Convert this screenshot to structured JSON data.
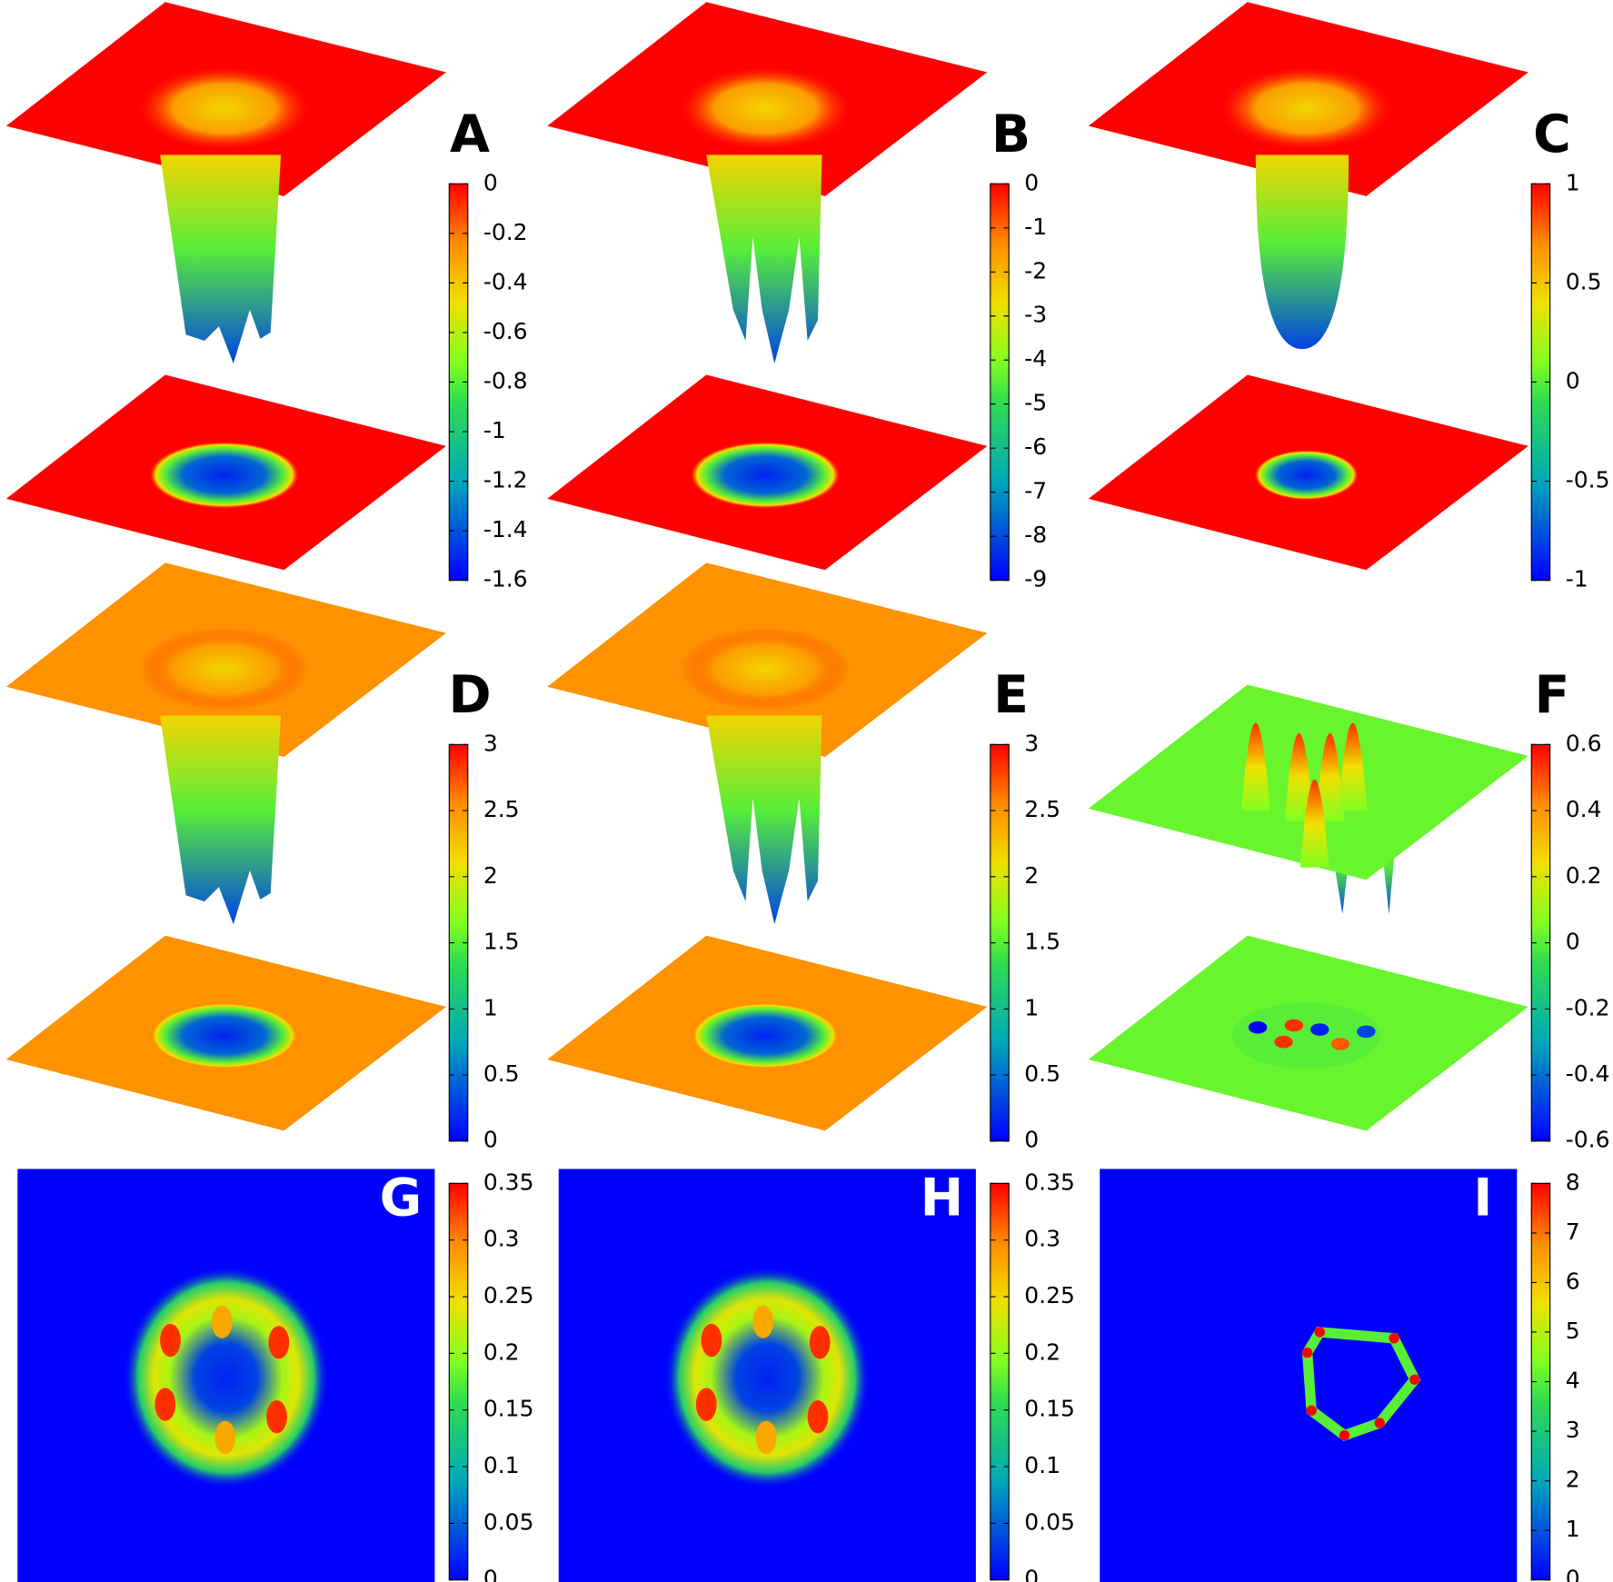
{
  "chart_data": [
    {
      "type": "surface",
      "label": "A",
      "clim": [
        -1.6,
        0
      ],
      "cticks": [
        -1.6,
        -1.4,
        -1.2,
        -1,
        -0.8,
        -0.6,
        -0.4,
        -0.2,
        0
      ]
    },
    {
      "type": "surface",
      "label": "B",
      "clim": [
        -9,
        0
      ],
      "cticks": [
        -9,
        -8,
        -7,
        -6,
        -5,
        -4,
        -3,
        -2,
        -1,
        0
      ]
    },
    {
      "type": "surface",
      "label": "C",
      "clim": [
        -1,
        1
      ],
      "cticks": [
        -1,
        -0.5,
        0,
        0.5,
        1
      ]
    },
    {
      "type": "surface",
      "label": "D",
      "clim": [
        0,
        3
      ],
      "cticks": [
        0,
        0.5,
        1,
        1.5,
        2,
        2.5,
        3
      ]
    },
    {
      "type": "surface",
      "label": "E",
      "clim": [
        0,
        3
      ],
      "cticks": [
        0,
        0.5,
        1,
        1.5,
        2,
        2.5,
        3
      ]
    },
    {
      "type": "surface",
      "label": "F",
      "clim": [
        -0.6,
        0.6
      ],
      "cticks": [
        -0.6,
        -0.4,
        -0.2,
        0,
        0.2,
        0.4,
        0.6
      ]
    },
    {
      "type": "heatmap",
      "label": "G",
      "clim": [
        0,
        0.35
      ],
      "cticks": [
        0,
        0.05,
        0.1,
        0.15,
        0.2,
        0.25,
        0.3,
        0.35
      ]
    },
    {
      "type": "heatmap",
      "label": "H",
      "clim": [
        0,
        0.35
      ],
      "cticks": [
        0,
        0.05,
        0.1,
        0.15,
        0.2,
        0.25,
        0.3,
        0.35
      ]
    },
    {
      "type": "heatmap",
      "label": "I",
      "clim": [
        0,
        8
      ],
      "cticks": [
        0,
        1,
        2,
        3,
        4,
        5,
        6,
        7,
        8
      ]
    }
  ]
}
